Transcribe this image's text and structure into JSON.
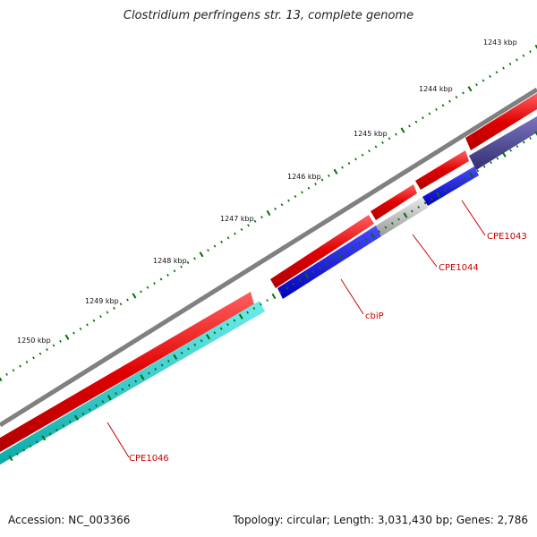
{
  "title": "Clostridium perfringens str. 13, complete genome",
  "footer": {
    "accession": "Accession: NC_003366",
    "summary": "Topology: circular; Length: 3,031,430 bp; Genes: 2,786"
  },
  "map": {
    "scale_labels": [
      "1243 kbp",
      "1244 kbp",
      "1245 kbp",
      "1246 kbp",
      "1247 kbp",
      "1248 kbp",
      "1249 kbp",
      "1250 kbp"
    ],
    "gene_labels": [
      "CPE1043",
      "CPE1044",
      "cbiP",
      "CPE1046"
    ],
    "colors": {
      "backbone": "#808080",
      "cds": "#e00000",
      "blue_feature": "#0000dd",
      "cyan_feature": "#10c8c8",
      "navy_feature": "#46408a",
      "grey_feature": "#c0c0c0",
      "ticks": "#007000",
      "labels": "#cc0000"
    }
  }
}
